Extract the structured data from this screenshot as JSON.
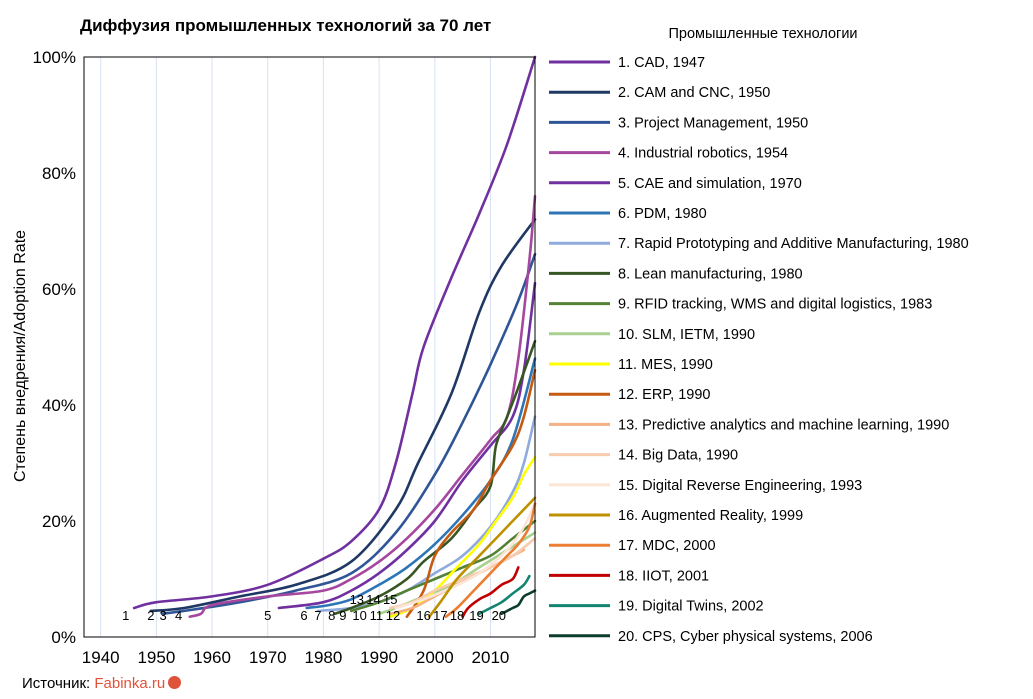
{
  "chart_data": {
    "type": "line",
    "title": "Диффузия промышленных технологий за 70 лет",
    "ylabel": "Степень внедрения/Adoption Rate",
    "xlabel": "",
    "xlim": [
      1937,
      2018
    ],
    "ylim": [
      0,
      100
    ],
    "x_ticks": [
      1940,
      1950,
      1960,
      1970,
      1980,
      1990,
      2000,
      2010
    ],
    "y_ticks": [
      {
        "value": 0,
        "label": "0%"
      },
      {
        "value": 20,
        "label": "20%"
      },
      {
        "value": 40,
        "label": "40%"
      },
      {
        "value": 60,
        "label": "60%"
      },
      {
        "value": 80,
        "label": "80%"
      },
      {
        "value": 100,
        "label": "100%"
      }
    ],
    "grid": "vertical",
    "legend_title": "Промышленные технологии",
    "legend_position": "right",
    "series": [
      {
        "name": "1. CAD, 1947",
        "color": "#7030a0",
        "start_label": "1",
        "label_x": 1944.5,
        "points": [
          [
            1946,
            5
          ],
          [
            1950,
            6
          ],
          [
            1960,
            7
          ],
          [
            1970,
            9
          ],
          [
            1980,
            13.5
          ],
          [
            1985,
            16.5
          ],
          [
            1990,
            22
          ],
          [
            1993,
            30
          ],
          [
            1996,
            42
          ],
          [
            1998,
            50
          ],
          [
            2003,
            62
          ],
          [
            2008,
            73
          ],
          [
            2013,
            85
          ],
          [
            2018,
            100
          ]
        ]
      },
      {
        "name": "2. CAM and CNC, 1950",
        "color": "#1f3864",
        "start_label": "2",
        "label_x": 1949,
        "points": [
          [
            1949,
            4.5
          ],
          [
            1955,
            5
          ],
          [
            1965,
            7
          ],
          [
            1975,
            9
          ],
          [
            1985,
            13
          ],
          [
            1993,
            22
          ],
          [
            1997,
            30
          ],
          [
            2003,
            42
          ],
          [
            2008,
            56
          ],
          [
            2012,
            64
          ],
          [
            2018,
            72
          ]
        ]
      },
      {
        "name": "3. Project Management, 1950",
        "color": "#2f5597",
        "start_label": "3",
        "label_x": 1951.2,
        "points": [
          [
            1951,
            4
          ],
          [
            1955,
            4.5
          ],
          [
            1965,
            6
          ],
          [
            1975,
            8
          ],
          [
            1985,
            11
          ],
          [
            1993,
            18
          ],
          [
            2000,
            28
          ],
          [
            2005,
            37
          ],
          [
            2010,
            47
          ],
          [
            2015,
            58
          ],
          [
            2018,
            66
          ]
        ]
      },
      {
        "name": "4. Industrial robotics, 1954",
        "color": "#a5479f",
        "start_label": "4",
        "label_x": 1954,
        "points": [
          [
            1956,
            3.5
          ],
          [
            1958,
            4
          ],
          [
            1960,
            5.5
          ],
          [
            1970,
            7
          ],
          [
            1980,
            8
          ],
          [
            1985,
            10
          ],
          [
            1990,
            13
          ],
          [
            1995,
            17
          ],
          [
            2000,
            22
          ],
          [
            2005,
            28
          ],
          [
            2010,
            34
          ],
          [
            2013,
            38
          ],
          [
            2015,
            48
          ],
          [
            2017,
            65
          ],
          [
            2018,
            76
          ]
        ]
      },
      {
        "name": "5. CAE and simulation, 1970",
        "color": "#7030a0",
        "start_label": "5",
        "label_x": 1970,
        "points": [
          [
            1972,
            5
          ],
          [
            1980,
            6
          ],
          [
            1985,
            8
          ],
          [
            1990,
            11
          ],
          [
            1995,
            15
          ],
          [
            2000,
            20
          ],
          [
            2005,
            27
          ],
          [
            2010,
            33
          ],
          [
            2014,
            38
          ],
          [
            2016,
            46
          ],
          [
            2018,
            61
          ]
        ]
      },
      {
        "name": "6. PDM, 1980",
        "color": "#2e75b6",
        "start_label": "6",
        "label_x": 1976.5,
        "points": [
          [
            1977,
            5
          ],
          [
            1981,
            5.5
          ],
          [
            1985,
            6.5
          ],
          [
            1990,
            9
          ],
          [
            1995,
            12
          ],
          [
            2000,
            16
          ],
          [
            2005,
            21
          ],
          [
            2010,
            27
          ],
          [
            2014,
            34
          ],
          [
            2018,
            48
          ]
        ]
      },
      {
        "name": "7. Rapid Prototyping and Additive Manufacturing, 1980",
        "color": "#8faadc",
        "start_label": "7",
        "label_x": 1979,
        "points": [
          [
            1979,
            4.5
          ],
          [
            1985,
            5
          ],
          [
            1990,
            6
          ],
          [
            1995,
            8
          ],
          [
            2000,
            11
          ],
          [
            2005,
            14
          ],
          [
            2010,
            19
          ],
          [
            2014,
            25
          ],
          [
            2016,
            30
          ],
          [
            2018,
            38
          ]
        ]
      },
      {
        "name": "8. Lean manufacturing, 1980",
        "color": "#375623",
        "start_label": "8",
        "label_x": 1981.5,
        "points": [
          [
            1982,
            4
          ],
          [
            1985,
            5
          ],
          [
            1990,
            7
          ],
          [
            1995,
            10
          ],
          [
            1998,
            13
          ],
          [
            2003,
            17
          ],
          [
            2007,
            22
          ],
          [
            2010,
            26
          ],
          [
            2011,
            33
          ],
          [
            2013,
            38
          ],
          [
            2015,
            43
          ],
          [
            2018,
            51
          ]
        ]
      },
      {
        "name": "9. RFID tracking, WMS and digital logistics, 1983",
        "color": "#548235",
        "start_label": "9",
        "label_x": 1983.5,
        "points": [
          [
            1985,
            4.5
          ],
          [
            1990,
            6
          ],
          [
            1995,
            8
          ],
          [
            2000,
            10
          ],
          [
            2005,
            12
          ],
          [
            2010,
            14
          ],
          [
            2014,
            17
          ],
          [
            2018,
            20
          ]
        ]
      },
      {
        "name": "10. SLM, IETM, 1990",
        "color": "#a9d08e",
        "start_label": "10",
        "label_x": 1986.5,
        "points": [
          [
            1990,
            4
          ],
          [
            1993,
            5
          ],
          [
            1998,
            7
          ],
          [
            2003,
            9
          ],
          [
            2008,
            12
          ],
          [
            2013,
            15
          ],
          [
            2018,
            18
          ]
        ]
      },
      {
        "name": "11. MES, 1990",
        "color": "#ffff00",
        "start_label": "11",
        "label_x": 1989.5,
        "points": [
          [
            1992,
            3.5
          ],
          [
            1996,
            5
          ],
          [
            2000,
            8
          ],
          [
            2004,
            12
          ],
          [
            2008,
            16
          ],
          [
            2011,
            20
          ],
          [
            2014,
            24
          ],
          [
            2016,
            28
          ],
          [
            2018,
            31
          ]
        ]
      },
      {
        "name": "12. ERP, 1990",
        "color": "#c55a11",
        "start_label": "12",
        "label_x": 1992.5,
        "points": [
          [
            1995,
            3.5
          ],
          [
            1998,
            8
          ],
          [
            2000,
            14
          ],
          [
            2003,
            18
          ],
          [
            2007,
            22
          ],
          [
            2010,
            27
          ],
          [
            2014,
            33
          ],
          [
            2016,
            38
          ],
          [
            2018,
            46
          ]
        ]
      },
      {
        "name": "13. Predictive analytics and machine learning, 1990",
        "color": "#f4b183",
        "start_label": "13",
        "label_x": 1986,
        "points": [
          [
            1992,
            4
          ],
          [
            1996,
            5
          ],
          [
            2000,
            7
          ],
          [
            2004,
            9
          ],
          [
            2008,
            11
          ],
          [
            2012,
            13
          ],
          [
            2016,
            15
          ]
        ]
      },
      {
        "name": "14. Big Data, 1990",
        "color": "#f8cbad",
        "start_label": "14",
        "label_x": 1989,
        "points": [
          [
            1992,
            5
          ],
          [
            1996,
            6
          ],
          [
            2000,
            8
          ],
          [
            2005,
            10
          ],
          [
            2010,
            12
          ],
          [
            2014,
            14
          ],
          [
            2018,
            17
          ]
        ]
      },
      {
        "name": "15. Digital Reverse Engineering, 1993",
        "color": "#fbe5d6",
        "start_label": "15",
        "label_x": 1992,
        "points": [
          [
            1993,
            5
          ],
          [
            1998,
            6.5
          ],
          [
            2003,
            8.5
          ],
          [
            2008,
            11
          ],
          [
            2013,
            15
          ],
          [
            2016,
            19
          ],
          [
            2018,
            23
          ]
        ]
      },
      {
        "name": "16. Augmented Reality, 1999",
        "color": "#bf9000",
        "start_label": "16",
        "label_x": 1998,
        "points": [
          [
            1999,
            3.5
          ],
          [
            2001,
            6
          ],
          [
            2004,
            10
          ],
          [
            2008,
            14
          ],
          [
            2012,
            18
          ],
          [
            2015,
            21
          ],
          [
            2018,
            24
          ]
        ]
      },
      {
        "name": "17. MDC, 2000",
        "color": "#ed7d31",
        "start_label": "17",
        "label_x": 2001,
        "points": [
          [
            2002,
            3.5
          ],
          [
            2004,
            5
          ],
          [
            2007,
            8
          ],
          [
            2010,
            11
          ],
          [
            2013,
            14
          ],
          [
            2015,
            16
          ],
          [
            2017,
            19
          ],
          [
            2018,
            23
          ]
        ]
      },
      {
        "name": "18. IIOT, 2001",
        "color": "#c00000",
        "start_label": "18",
        "label_x": 2004,
        "points": [
          [
            2005,
            3.5
          ],
          [
            2006,
            5
          ],
          [
            2008,
            6.5
          ],
          [
            2010,
            7.5
          ],
          [
            2012,
            9
          ],
          [
            2014,
            10
          ],
          [
            2015,
            12
          ]
        ]
      },
      {
        "name": "19. Digital Twins, 2002",
        "color": "#138470",
        "start_label": "19",
        "label_x": 2007.5,
        "points": [
          [
            2008,
            4
          ],
          [
            2010,
            5
          ],
          [
            2012,
            6
          ],
          [
            2014,
            7.5
          ],
          [
            2016,
            9
          ],
          [
            2017,
            10.5
          ]
        ]
      },
      {
        "name": "20. CPS, Cyber physical systems, 2006",
        "color": "#0b3d2e",
        "start_label": "20",
        "label_x": 2011.5,
        "points": [
          [
            2012,
            4
          ],
          [
            2014,
            5
          ],
          [
            2015,
            5.5
          ],
          [
            2016,
            7
          ],
          [
            2017,
            7.5
          ],
          [
            2018,
            8
          ]
        ]
      }
    ]
  },
  "source": {
    "prefix": "Источник: ",
    "site": "Fabinka.ru"
  }
}
